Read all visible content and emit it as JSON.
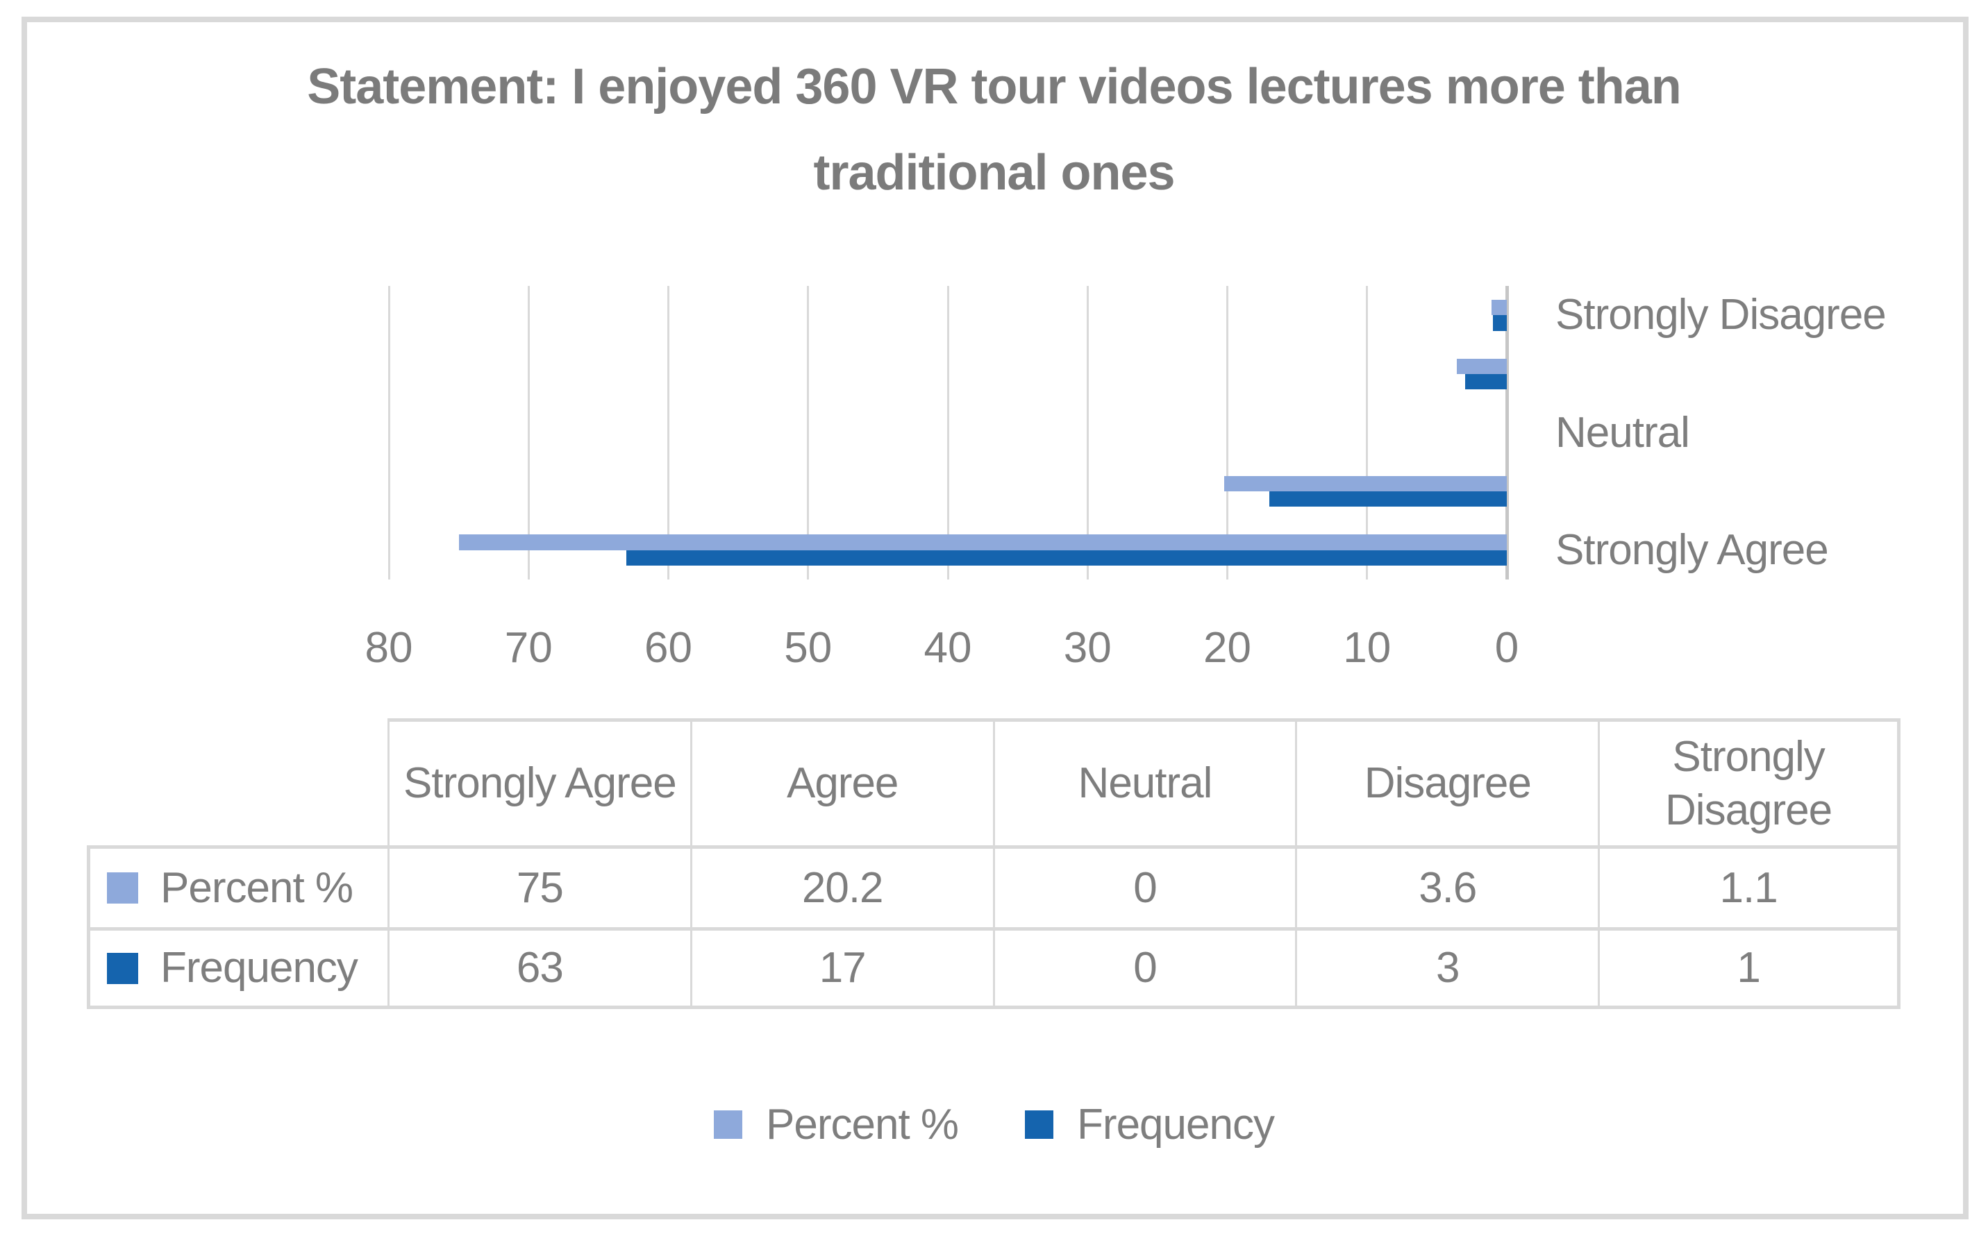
{
  "title": {
    "text": "Statement: I enjoyed 360 VR tour videos lectures more than traditional ones"
  },
  "colors": {
    "percent": "#8EA9DB",
    "frequency": "#1564AE",
    "text_gray": "#7E7E7E",
    "gridline": "#D9D9D9",
    "zero_axis_line": "#C6C6C6",
    "frame_border": "#D9D9D9",
    "table_border": "#D9D9D9"
  },
  "chart_data": {
    "type": "bar",
    "orientation": "horizontal",
    "title": "Statement: I enjoyed 360 VR tour videos lectures more than traditional ones",
    "categories": [
      "Strongly Agree",
      "Agree",
      "Neutral",
      "Disagree",
      "Strongly Disagree"
    ],
    "series": [
      {
        "name": "Percent %",
        "values": [
          75,
          20.2,
          0,
          3.6,
          1.1
        ],
        "color_key": "percent"
      },
      {
        "name": "Frequency",
        "values": [
          63,
          17,
          0,
          3,
          1
        ],
        "color_key": "frequency"
      }
    ],
    "value_axis": {
      "min": 0,
      "max": 80,
      "tick_interval": 10,
      "reversed": true,
      "tick_labels": [
        "80",
        "70",
        "60",
        "50",
        "40",
        "30",
        "20",
        "10",
        "0"
      ]
    },
    "category_axis": {
      "order_top_to_bottom": [
        "Strongly Disagree",
        "Disagree",
        "Neutral",
        "Agree",
        "Strongly Agree"
      ],
      "visible_labels": [
        "Strongly Disagree",
        "Neutral",
        "Strongly Agree"
      ],
      "labels_position": "right"
    },
    "grid": true,
    "legend_position": "bottom"
  },
  "table": {
    "column_headers": [
      "Strongly Agree",
      "Agree",
      "Neutral",
      "Disagree",
      "Strongly Disagree"
    ],
    "rows": [
      {
        "label": "Percent %",
        "marker_color_key": "percent",
        "values": [
          "75",
          "20.2",
          "0",
          "3.6",
          "1.1"
        ]
      },
      {
        "label": "Frequency",
        "marker_color_key": "frequency",
        "values": [
          "63",
          "17",
          "0",
          "3",
          "1"
        ]
      }
    ]
  },
  "legend": {
    "items": [
      {
        "label": "Percent %",
        "color_key": "percent"
      },
      {
        "label": "Frequency",
        "color_key": "frequency"
      }
    ]
  }
}
